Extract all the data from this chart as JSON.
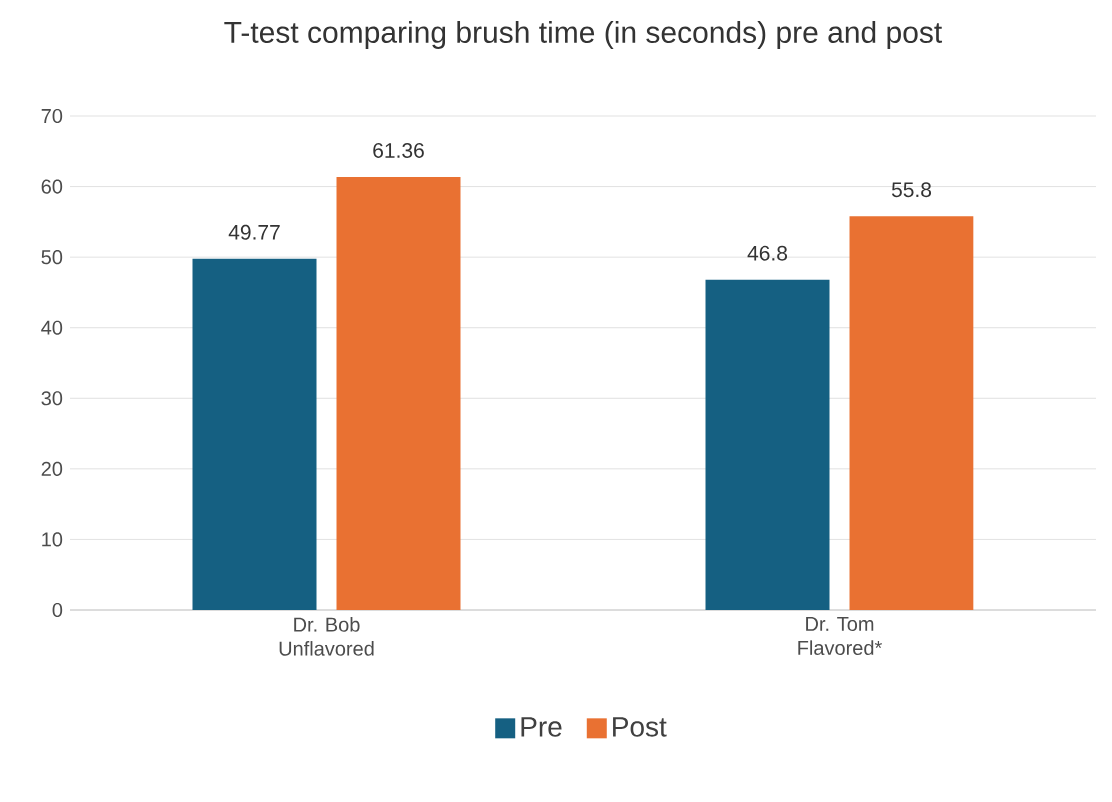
{
  "chart_data": {
    "type": "bar",
    "title": "T-test comparing brush time (in seconds) pre and post",
    "categories": [
      "Dr. Bob Unflavored",
      "Dr. Tom Flavored*"
    ],
    "series": [
      {
        "name": "Pre",
        "color": "#156082",
        "values": [
          49.77,
          46.8
        ]
      },
      {
        "name": "Post",
        "color": "#e97132",
        "values": [
          61.36,
          55.8
        ]
      }
    ],
    "ylim": [
      0,
      70
    ],
    "yticks": [
      0,
      10,
      20,
      30,
      40,
      50,
      60,
      70
    ],
    "grid": "y",
    "legend": "bottom",
    "data_labels": true
  }
}
